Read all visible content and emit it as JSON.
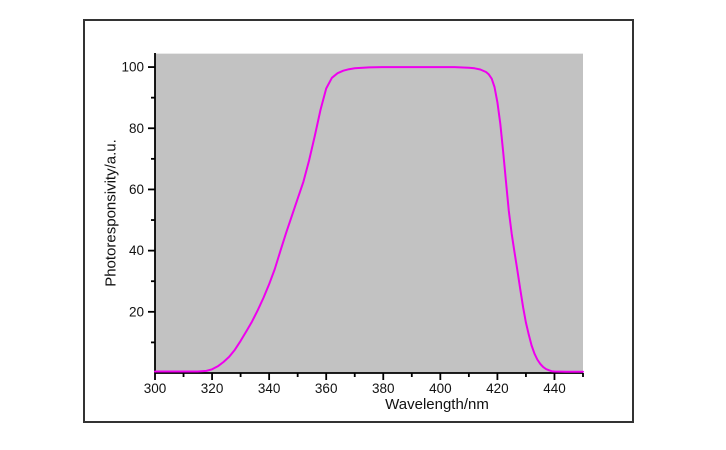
{
  "chart_data": {
    "type": "line",
    "title": "",
    "xlabel": "Wavelength/nm",
    "ylabel": "Photoresponsivity/a.u.",
    "xlim": [
      300,
      450
    ],
    "ylim": [
      0,
      104.6
    ],
    "x_major_ticks": [
      300,
      320,
      340,
      360,
      380,
      400,
      420,
      440
    ],
    "x_minor_ticks": [
      310,
      330,
      350,
      370,
      390,
      410,
      430,
      450
    ],
    "y_major_ticks": [
      20,
      40,
      60,
      80,
      100
    ],
    "y_minor_ticks": [
      10,
      30,
      50,
      70,
      90
    ],
    "grid": "off",
    "legend": "none",
    "colors": {
      "plot_background": "#c2c2c2",
      "plot_top_highlight": "#e9e9e9",
      "line": "#ee00ee",
      "axis": "#000000",
      "tick_label": "#111111",
      "figure_border": "#333333",
      "page_background": "#ffffff"
    },
    "series": [
      {
        "name": "photoresponsivity",
        "points": [
          [
            300,
            0.5
          ],
          [
            305,
            0.5
          ],
          [
            310,
            0.5
          ],
          [
            315,
            0.5
          ],
          [
            318,
            0.7
          ],
          [
            320,
            1.2
          ],
          [
            322,
            2.2
          ],
          [
            324,
            3.6
          ],
          [
            326,
            5.3
          ],
          [
            328,
            7.6
          ],
          [
            330,
            10.5
          ],
          [
            332,
            13.6
          ],
          [
            334,
            16.8
          ],
          [
            336,
            20.5
          ],
          [
            338,
            24.5
          ],
          [
            340,
            29
          ],
          [
            342,
            34
          ],
          [
            344,
            40
          ],
          [
            346,
            46
          ],
          [
            348,
            51.5
          ],
          [
            350,
            57
          ],
          [
            352,
            62.5
          ],
          [
            354,
            69.5
          ],
          [
            356,
            77.5
          ],
          [
            358,
            86
          ],
          [
            360,
            93
          ],
          [
            362,
            96.5
          ],
          [
            364,
            98
          ],
          [
            366,
            98.8
          ],
          [
            368,
            99.3
          ],
          [
            370,
            99.6
          ],
          [
            375,
            99.9
          ],
          [
            380,
            100
          ],
          [
            390,
            100
          ],
          [
            400,
            100
          ],
          [
            405,
            100
          ],
          [
            410,
            99.8
          ],
          [
            412,
            99.6
          ],
          [
            414,
            99.2
          ],
          [
            416,
            98.4
          ],
          [
            417,
            97.6
          ],
          [
            418,
            96.2
          ],
          [
            419,
            93.5
          ],
          [
            420,
            88.5
          ],
          [
            421,
            81.5
          ],
          [
            422,
            72.5
          ],
          [
            423,
            62.5
          ],
          [
            424,
            53
          ],
          [
            425,
            45.5
          ],
          [
            426,
            39.5
          ],
          [
            427,
            33.5
          ],
          [
            428,
            27.5
          ],
          [
            429,
            21.5
          ],
          [
            430,
            16.5
          ],
          [
            431,
            12.5
          ],
          [
            432,
            9
          ],
          [
            433,
            6.3
          ],
          [
            434,
            4.4
          ],
          [
            435,
            3
          ],
          [
            436,
            2
          ],
          [
            437,
            1.3
          ],
          [
            438,
            0.9
          ],
          [
            439,
            0.6
          ],
          [
            440,
            0.5
          ],
          [
            444,
            0.4
          ],
          [
            450,
            0.4
          ]
        ]
      }
    ]
  }
}
